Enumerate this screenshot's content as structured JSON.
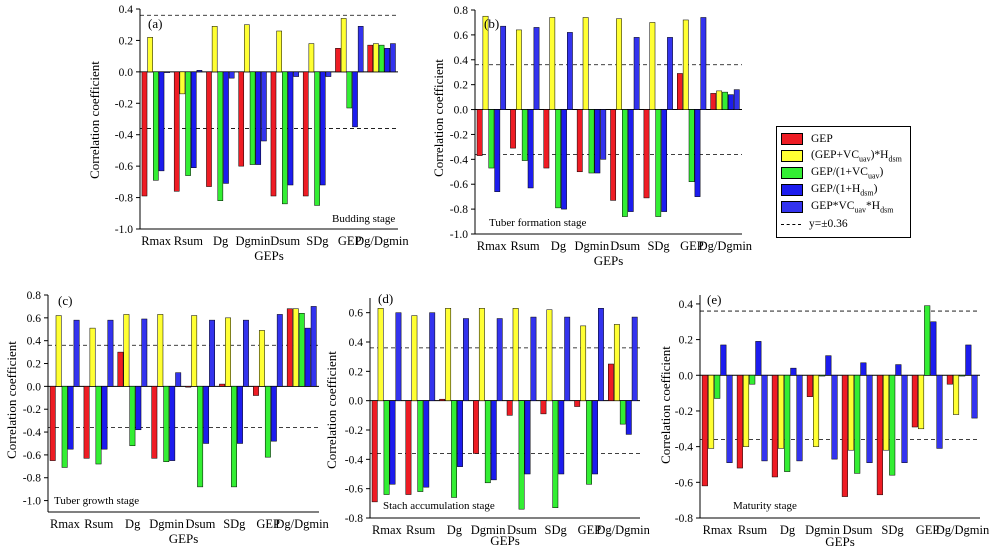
{
  "colors": {
    "GEP": "#ee1c24",
    "GEP_VC_H": "#ffff33",
    "GEP_1_VC": "#33ee33",
    "GEP_1_H": "#1c1cee",
    "GEP_VC_H_prod": "#3333ee"
  },
  "legend": {
    "items": [
      {
        "key": "GEP",
        "html": "GEP"
      },
      {
        "key": "GEP_VC_H",
        "html": "(GEP+VC<sub>uav</sub>)*H<sub>dsm</sub>"
      },
      {
        "key": "GEP_1_VC",
        "html": "GEP/(1+VC<sub>uav</sub>)"
      },
      {
        "key": "GEP_1_H",
        "html": "GEP/(1+H<sub>dsm</sub>)"
      },
      {
        "key": "GEP_VC_H_prod",
        "html": "GEP*VC<sub>uav</sub>*H<sub>dsm</sub>"
      }
    ],
    "ref_label": "y=±0.36"
  },
  "chart_data": [
    {
      "type": "bar",
      "panel": "(a)",
      "annotation": "Budding stage",
      "xlabel": "GEPs",
      "ylabel": "Correlation coefficient",
      "ylim": [
        -1.0,
        0.4
      ],
      "yticks": [
        "0.4",
        "0.2",
        "0.0",
        "-0.2",
        "-0.4",
        "-0.6",
        "-0.8",
        "-1.0"
      ],
      "ref_lines": [
        0.36,
        -0.36
      ],
      "categories": [
        "Rmax",
        "Rsum",
        "Dg",
        "Dgmin",
        "Dsum",
        "SDg",
        "GEP",
        "Dg/Dgmin"
      ],
      "series": [
        {
          "key": "GEP",
          "values": [
            -0.79,
            -0.76,
            -0.73,
            -0.6,
            -0.79,
            -0.79,
            0.15,
            0.17
          ]
        },
        {
          "key": "GEP_VC_H",
          "values": [
            0.22,
            -0.14,
            0.29,
            0.3,
            0.26,
            0.18,
            0.34,
            0.18
          ]
        },
        {
          "key": "GEP_1_VC",
          "values": [
            -0.69,
            -0.66,
            -0.82,
            -0.59,
            -0.84,
            -0.85,
            -0.23,
            0.17
          ]
        },
        {
          "key": "GEP_1_H",
          "values": [
            -0.63,
            -0.61,
            -0.71,
            -0.59,
            -0.72,
            -0.72,
            -0.35,
            0.15
          ]
        },
        {
          "key": "GEP_VC_H_prod",
          "values": [
            0.0,
            0.01,
            -0.04,
            -0.44,
            -0.03,
            -0.03,
            0.29,
            0.18
          ]
        }
      ]
    },
    {
      "type": "bar",
      "panel": "(b)",
      "annotation": "Tuber formation stage",
      "xlabel": "GEPs",
      "ylabel": "Correlation coefficient",
      "ylim": [
        -1.0,
        0.8
      ],
      "yticks": [
        "0.8",
        "0.6",
        "0.4",
        "0.2",
        "0.0",
        "-0.2",
        "-0.4",
        "-0.6",
        "-0.8",
        "-1.0"
      ],
      "ref_lines": [
        0.36,
        -0.36
      ],
      "categories": [
        "Rmax",
        "Rsum",
        "Dg",
        "Dgmin",
        "Dsum",
        "SDg",
        "GEP",
        "Dg/Dgmin"
      ],
      "series": [
        {
          "key": "GEP",
          "values": [
            -0.37,
            -0.31,
            -0.47,
            -0.5,
            -0.73,
            -0.71,
            0.29,
            0.13
          ]
        },
        {
          "key": "GEP_VC_H",
          "values": [
            0.75,
            0.64,
            0.74,
            0.74,
            0.73,
            0.7,
            0.72,
            0.15
          ]
        },
        {
          "key": "GEP_1_VC",
          "values": [
            -0.47,
            -0.41,
            -0.79,
            -0.51,
            -0.86,
            -0.86,
            -0.58,
            0.14
          ]
        },
        {
          "key": "GEP_1_H",
          "values": [
            -0.66,
            -0.63,
            -0.8,
            -0.51,
            -0.82,
            -0.82,
            -0.7,
            0.12
          ]
        },
        {
          "key": "GEP_VC_H_prod",
          "values": [
            0.67,
            0.66,
            0.62,
            -0.4,
            0.58,
            0.58,
            0.74,
            0.16
          ]
        }
      ]
    },
    {
      "type": "bar",
      "panel": "(c)",
      "annotation": "Tuber growth stage",
      "xlabel": "GEPs",
      "ylabel": "Correlation coefficient",
      "ylim": [
        -1.1,
        0.8
      ],
      "yticks": [
        "0.8",
        "0.6",
        "0.4",
        "0.2",
        "0.0",
        "-0.2",
        "-0.4",
        "-0.6",
        "-0.8",
        "-1.0"
      ],
      "ref_lines": [
        0.36,
        -0.36
      ],
      "categories": [
        "Rmax",
        "Rsum",
        "Dg",
        "Dgmin",
        "Dsum",
        "SDg",
        "GEP",
        "Dg/Dgmin"
      ],
      "series": [
        {
          "key": "GEP",
          "values": [
            -0.65,
            -0.63,
            0.3,
            -0.63,
            0.0,
            0.02,
            -0.08,
            0.68
          ]
        },
        {
          "key": "GEP_VC_H",
          "values": [
            0.62,
            0.51,
            0.63,
            0.63,
            0.62,
            0.6,
            0.49,
            0.68
          ]
        },
        {
          "key": "GEP_1_VC",
          "values": [
            -0.71,
            -0.68,
            -0.52,
            -0.66,
            -0.88,
            -0.88,
            -0.62,
            0.64
          ]
        },
        {
          "key": "GEP_1_H",
          "values": [
            -0.55,
            -0.55,
            -0.38,
            -0.65,
            -0.5,
            -0.5,
            -0.48,
            0.51
          ]
        },
        {
          "key": "GEP_VC_H_prod",
          "values": [
            0.58,
            0.58,
            0.59,
            0.12,
            0.58,
            0.58,
            0.63,
            0.7
          ]
        }
      ]
    },
    {
      "type": "bar",
      "panel": "(d)",
      "annotation": "Stach accumulation stage",
      "xlabel": "GEPs",
      "ylabel": "Correlation coefficient",
      "ylim": [
        -0.8,
        0.7
      ],
      "yticks": [
        "0.6",
        "0.4",
        "0.2",
        "0.0",
        "-0.2",
        "-0.4",
        "-0.6",
        "-0.8"
      ],
      "ref_lines": [
        0.36,
        -0.36
      ],
      "categories": [
        "Rmax",
        "Rsum",
        "Dg",
        "Dgmin",
        "Dsum",
        "SDg",
        "GEP",
        "Dg/Dgmin"
      ],
      "series": [
        {
          "key": "GEP",
          "values": [
            -0.69,
            -0.64,
            0.01,
            -0.36,
            -0.1,
            -0.09,
            -0.04,
            0.25
          ]
        },
        {
          "key": "GEP_VC_H",
          "values": [
            0.63,
            0.58,
            0.63,
            0.63,
            0.63,
            0.62,
            0.51,
            0.52
          ]
        },
        {
          "key": "GEP_1_VC",
          "values": [
            -0.64,
            -0.62,
            -0.66,
            -0.56,
            -0.74,
            -0.73,
            -0.57,
            -0.16
          ]
        },
        {
          "key": "GEP_1_H",
          "values": [
            -0.57,
            -0.59,
            -0.45,
            -0.54,
            -0.5,
            -0.5,
            -0.5,
            -0.23
          ]
        },
        {
          "key": "GEP_VC_H_prod",
          "values": [
            0.6,
            0.6,
            0.56,
            0.56,
            0.57,
            0.57,
            0.63,
            0.57
          ]
        }
      ]
    },
    {
      "type": "bar",
      "panel": "(e)",
      "annotation": "Maturity stage",
      "xlabel": "GEPs",
      "ylabel": "Correlation coefficient",
      "ylim": [
        -0.8,
        0.45
      ],
      "yticks": [
        "0.4",
        "0.2",
        "0.0",
        "-0.2",
        "-0.4",
        "-0.6",
        "-0.8"
      ],
      "ref_lines": [
        0.36,
        -0.36
      ],
      "categories": [
        "Rmax",
        "Rsum",
        "Dg",
        "Dgmin",
        "Dsum",
        "SDg",
        "GEP",
        "Dg/Dgmin"
      ],
      "series": [
        {
          "key": "GEP",
          "values": [
            -0.62,
            -0.52,
            -0.57,
            -0.12,
            -0.68,
            -0.67,
            -0.29,
            -0.05
          ]
        },
        {
          "key": "GEP_VC_H",
          "values": [
            -0.41,
            -0.4,
            -0.41,
            -0.4,
            -0.42,
            -0.42,
            -0.3,
            -0.22
          ]
        },
        {
          "key": "GEP_1_VC",
          "values": [
            -0.13,
            -0.05,
            -0.54,
            0.0,
            -0.55,
            -0.56,
            0.39,
            0.0
          ]
        },
        {
          "key": "GEP_1_H",
          "values": [
            0.17,
            0.19,
            0.04,
            0.11,
            0.07,
            0.06,
            0.3,
            0.17
          ]
        },
        {
          "key": "GEP_VC_H_prod",
          "values": [
            -0.49,
            -0.48,
            -0.48,
            -0.47,
            -0.49,
            -0.49,
            -0.41,
            -0.24
          ]
        }
      ]
    }
  ]
}
